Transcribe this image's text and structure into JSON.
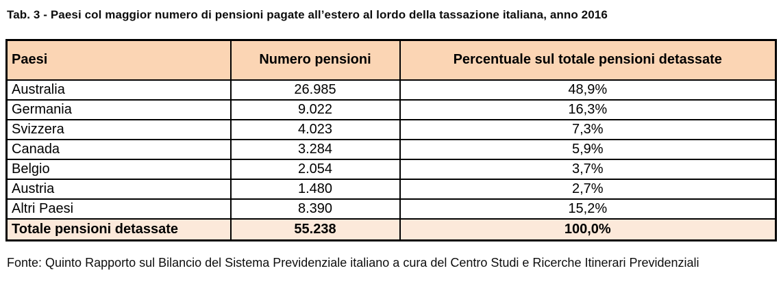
{
  "caption": "Tab. 3 - Paesi col maggior numero di pensioni pagate all’estero al lordo della tassazione italiana, anno 2016",
  "table": {
    "columns": [
      "Paesi",
      "Numero pensioni",
      "Percentuale sul totale pensioni detassate"
    ],
    "rows": [
      {
        "paese": "Australia",
        "numero": "26.985",
        "percentuale": "48,9%"
      },
      {
        "paese": "Germania",
        "numero": "9.022",
        "percentuale": "16,3%"
      },
      {
        "paese": "Svizzera",
        "numero": "4.023",
        "percentuale": "7,3%"
      },
      {
        "paese": "Canada",
        "numero": "3.284",
        "percentuale": "5,9%"
      },
      {
        "paese": "Belgio",
        "numero": "2.054",
        "percentuale": "3,7%"
      },
      {
        "paese": "Austria",
        "numero": "1.480",
        "percentuale": "2,7%"
      },
      {
        "paese": "Altri Paesi",
        "numero": "8.390",
        "percentuale": "15,2%"
      }
    ],
    "total_row": {
      "paese": "Totale pensioni detassate",
      "numero": "55.238",
      "percentuale": "100,0%"
    }
  },
  "source": "Fonte: Quinto Rapporto sul Bilancio del Sistema Previdenziale italiano a cura del Centro Studi e Ricerche Itinerari Previdenziali",
  "colors": {
    "header_bg": "#FBD5B4",
    "total_bg": "#FCE9DA",
    "border": "#000000",
    "text": "#000000"
  }
}
